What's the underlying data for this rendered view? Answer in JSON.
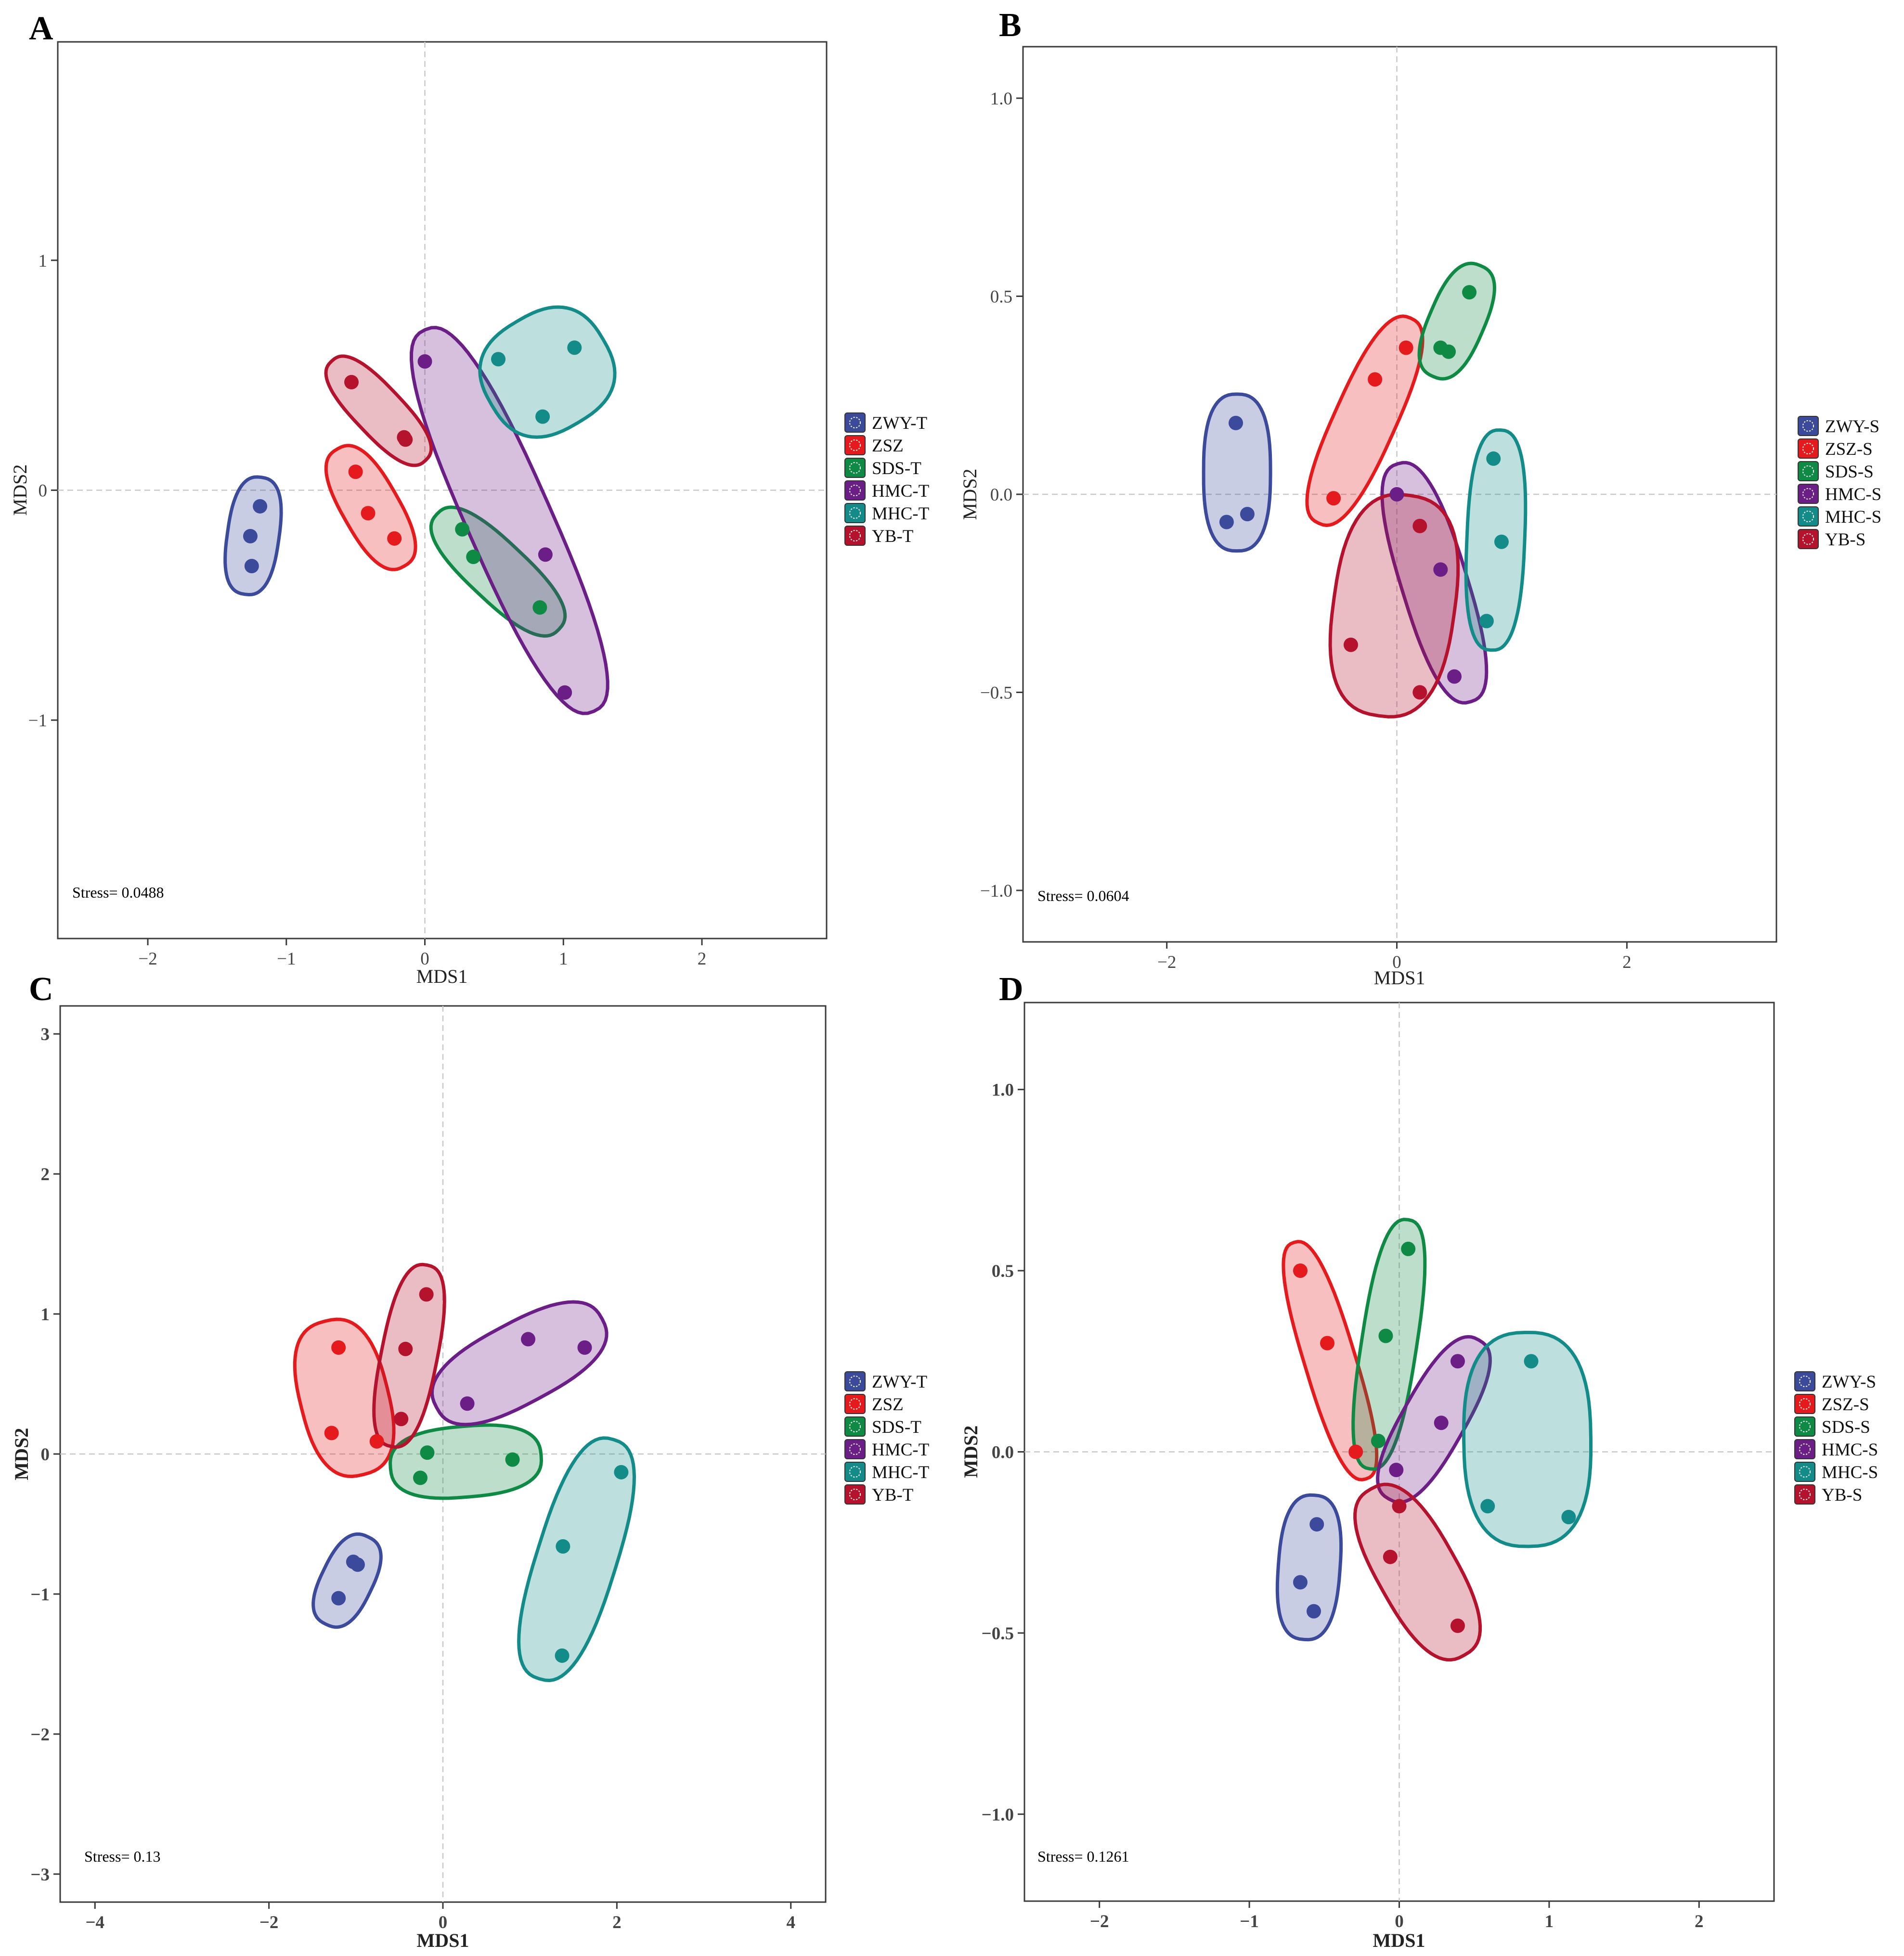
{
  "colors": {
    "ZWY": "#3B4A9A",
    "ZSZ": "#E41A1C",
    "SDS": "#0E8A45",
    "HMC": "#6A1E86",
    "MHC": "#138B89",
    "YB": "#B5122E"
  },
  "chart_data": [
    {
      "type": "scatter",
      "panel_label": "A",
      "xlabel": "MDS1",
      "ylabel": "MDS2",
      "bold_axis_labels": false,
      "xlim": [
        -2.65,
        2.9
      ],
      "ylim": [
        -1.95,
        1.95
      ],
      "xticks": [
        -2,
        -1,
        0,
        1,
        2
      ],
      "yticks": [
        -1,
        0,
        1
      ],
      "xtick_labels": [
        "−2",
        "−1",
        "0",
        "1",
        "2"
      ],
      "ytick_labels": [
        "−1",
        "0",
        "1"
      ],
      "stress_label": "Stress= 0.0488",
      "grid": false,
      "zero_lines": true,
      "legend_position": "right",
      "legend": [
        {
          "label": "ZWY-T",
          "group": "ZWY"
        },
        {
          "label": "ZSZ",
          "group": "ZSZ"
        },
        {
          "label": "SDS-T",
          "group": "SDS"
        },
        {
          "label": "HMC-T",
          "group": "HMC"
        },
        {
          "label": "MHC-T",
          "group": "MHC"
        },
        {
          "label": "YB-T",
          "group": "YB"
        }
      ],
      "series": [
        {
          "name": "ZWY-T",
          "group": "ZWY",
          "points": [
            [
              -1.19,
              -0.07
            ],
            [
              -1.26,
              -0.2
            ],
            [
              -1.25,
              -0.33
            ]
          ]
        },
        {
          "name": "ZSZ",
          "group": "ZSZ",
          "points": [
            [
              -0.5,
              0.08
            ],
            [
              -0.41,
              -0.1
            ],
            [
              -0.22,
              -0.21
            ]
          ]
        },
        {
          "name": "SDS-T",
          "group": "SDS",
          "points": [
            [
              0.27,
              -0.17
            ],
            [
              0.35,
              -0.29
            ],
            [
              0.83,
              -0.51
            ]
          ]
        },
        {
          "name": "HMC-T",
          "group": "HMC",
          "points": [
            [
              0.0,
              0.56
            ],
            [
              0.87,
              -0.28
            ],
            [
              1.01,
              -0.88
            ]
          ]
        },
        {
          "name": "MHC-T",
          "group": "MHC",
          "points": [
            [
              0.53,
              0.57
            ],
            [
              1.08,
              0.62
            ],
            [
              0.85,
              0.32
            ]
          ]
        },
        {
          "name": "YB-T",
          "group": "YB",
          "points": [
            [
              -0.53,
              0.47
            ],
            [
              -0.15,
              0.23
            ],
            [
              -0.14,
              0.22
            ]
          ]
        }
      ]
    },
    {
      "type": "scatter",
      "panel_label": "B",
      "xlabel": "MDS1",
      "ylabel": "MDS2",
      "bold_axis_labels": false,
      "xlim": [
        -3.25,
        3.3
      ],
      "ylim": [
        -1.13,
        1.13
      ],
      "xticks": [
        -2,
        0,
        2
      ],
      "yticks": [
        -1.0,
        -0.5,
        0.0,
        0.5,
        1.0
      ],
      "xtick_labels": [
        "−2",
        "0",
        "2"
      ],
      "ytick_labels": [
        "−1.0",
        "−0.5",
        "0.0",
        "0.5",
        "1.0"
      ],
      "stress_label": "Stress= 0.0604",
      "grid": false,
      "zero_lines": true,
      "legend_position": "right",
      "legend": [
        {
          "label": "ZWY-S",
          "group": "ZWY"
        },
        {
          "label": "ZSZ-S",
          "group": "ZSZ"
        },
        {
          "label": "SDS-S",
          "group": "SDS"
        },
        {
          "label": "HMC-S",
          "group": "HMC"
        },
        {
          "label": "MHC-S",
          "group": "MHC"
        },
        {
          "label": "YB-S",
          "group": "YB"
        }
      ],
      "series": [
        {
          "name": "ZWY-S",
          "group": "ZWY",
          "points": [
            [
              -1.4,
              0.18
            ],
            [
              -1.48,
              -0.07
            ],
            [
              -1.3,
              -0.05
            ]
          ]
        },
        {
          "name": "ZSZ-S",
          "group": "ZSZ",
          "points": [
            [
              -0.55,
              -0.01
            ],
            [
              -0.19,
              0.29
            ],
            [
              0.08,
              0.37
            ]
          ]
        },
        {
          "name": "SDS-S",
          "group": "SDS",
          "points": [
            [
              0.38,
              0.37
            ],
            [
              0.45,
              0.36
            ],
            [
              0.63,
              0.51
            ]
          ]
        },
        {
          "name": "HMC-S",
          "group": "HMC",
          "points": [
            [
              0.0,
              0.0
            ],
            [
              0.38,
              -0.19
            ],
            [
              0.5,
              -0.46
            ]
          ]
        },
        {
          "name": "MHC-S",
          "group": "MHC",
          "points": [
            [
              0.84,
              0.09
            ],
            [
              0.91,
              -0.12
            ],
            [
              0.78,
              -0.32
            ]
          ]
        },
        {
          "name": "YB-S",
          "group": "YB",
          "points": [
            [
              0.2,
              -0.08
            ],
            [
              -0.4,
              -0.38
            ],
            [
              0.2,
              -0.5
            ]
          ]
        }
      ]
    },
    {
      "type": "scatter",
      "panel_label": "C",
      "xlabel": "MDS1",
      "ylabel": "MDS2",
      "bold_axis_labels": true,
      "xlim": [
        -4.4,
        4.4
      ],
      "ylim": [
        -3.2,
        3.2
      ],
      "xticks": [
        -4,
        -2,
        0,
        2,
        4
      ],
      "yticks": [
        -3,
        -2,
        -1,
        0,
        1,
        2,
        3
      ],
      "xtick_labels": [
        "−4",
        "−2",
        "0",
        "2",
        "4"
      ],
      "ytick_labels": [
        "−3",
        "−2",
        "−1",
        "0",
        "1",
        "2",
        "3"
      ],
      "stress_label": "Stress= 0.13",
      "grid": false,
      "zero_lines": true,
      "legend_position": "right",
      "legend": [
        {
          "label": "ZWY-T",
          "group": "ZWY"
        },
        {
          "label": "ZSZ",
          "group": "ZSZ"
        },
        {
          "label": "SDS-T",
          "group": "SDS"
        },
        {
          "label": "HMC-T",
          "group": "HMC"
        },
        {
          "label": "MHC-T",
          "group": "MHC"
        },
        {
          "label": "YB-T",
          "group": "YB"
        }
      ],
      "series": [
        {
          "name": "ZWY-T",
          "group": "ZWY",
          "points": [
            [
              -1.03,
              -0.77
            ],
            [
              -0.98,
              -0.79
            ],
            [
              -1.2,
              -1.03
            ]
          ]
        },
        {
          "name": "ZSZ",
          "group": "ZSZ",
          "points": [
            [
              -1.2,
              0.76
            ],
            [
              -1.28,
              0.15
            ],
            [
              -0.76,
              0.09
            ]
          ]
        },
        {
          "name": "SDS-T",
          "group": "SDS",
          "points": [
            [
              -0.18,
              0.01
            ],
            [
              -0.26,
              -0.17
            ],
            [
              0.8,
              -0.04
            ]
          ]
        },
        {
          "name": "HMC-T",
          "group": "HMC",
          "points": [
            [
              0.28,
              0.36
            ],
            [
              0.98,
              0.82
            ],
            [
              1.63,
              0.76
            ]
          ]
        },
        {
          "name": "MHC-T",
          "group": "MHC",
          "points": [
            [
              2.05,
              -0.13
            ],
            [
              1.38,
              -0.66
            ],
            [
              1.37,
              -1.44
            ]
          ]
        },
        {
          "name": "YB-T",
          "group": "YB",
          "points": [
            [
              -0.19,
              1.14
            ],
            [
              -0.43,
              0.75
            ],
            [
              -0.48,
              0.25
            ]
          ]
        }
      ]
    },
    {
      "type": "scatter",
      "panel_label": "D",
      "xlabel": "MDS1",
      "ylabel": "MDS2",
      "bold_axis_labels": true,
      "xlim": [
        -2.5,
        2.5
      ],
      "ylim": [
        -1.24,
        1.24
      ],
      "xticks": [
        -2,
        -1,
        0,
        1,
        2
      ],
      "yticks": [
        -1.0,
        -0.5,
        0.0,
        0.5,
        1.0
      ],
      "xtick_labels": [
        "−2",
        "−1",
        "0",
        "1",
        "2"
      ],
      "ytick_labels": [
        "−1.0",
        "−0.5",
        "0.0",
        "0.5",
        "1.0"
      ],
      "stress_label": "Stress= 0.1261",
      "grid": false,
      "zero_lines": true,
      "legend_position": "right",
      "legend": [
        {
          "label": "ZWY-S",
          "group": "ZWY"
        },
        {
          "label": "ZSZ-S",
          "group": "ZSZ"
        },
        {
          "label": "SDS-S",
          "group": "SDS"
        },
        {
          "label": "HMC-S",
          "group": "HMC"
        },
        {
          "label": "MHC-S",
          "group": "MHC"
        },
        {
          "label": "YB-S",
          "group": "YB"
        }
      ],
      "series": [
        {
          "name": "ZWY-S",
          "group": "ZWY",
          "points": [
            [
              -0.55,
              -0.2
            ],
            [
              -0.66,
              -0.36
            ],
            [
              -0.57,
              -0.44
            ]
          ]
        },
        {
          "name": "ZSZ-S",
          "group": "ZSZ",
          "points": [
            [
              -0.66,
              0.5
            ],
            [
              -0.48,
              0.3
            ],
            [
              -0.29,
              0.0
            ]
          ]
        },
        {
          "name": "SDS-S",
          "group": "SDS",
          "points": [
            [
              0.06,
              0.56
            ],
            [
              -0.09,
              0.32
            ],
            [
              -0.14,
              0.03
            ]
          ]
        },
        {
          "name": "HMC-S",
          "group": "HMC",
          "points": [
            [
              0.39,
              0.25
            ],
            [
              0.28,
              0.08
            ],
            [
              -0.02,
              -0.05
            ]
          ]
        },
        {
          "name": "MHC-S",
          "group": "MHC",
          "points": [
            [
              0.88,
              0.25
            ],
            [
              0.59,
              -0.15
            ],
            [
              1.13,
              -0.18
            ]
          ]
        },
        {
          "name": "YB-S",
          "group": "YB",
          "points": [
            [
              0.0,
              -0.15
            ],
            [
              -0.06,
              -0.29
            ],
            [
              0.39,
              -0.48
            ]
          ]
        }
      ]
    }
  ]
}
